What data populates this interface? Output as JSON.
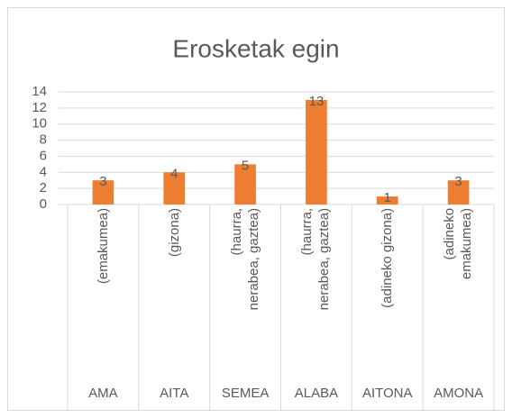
{
  "chart_data": {
    "type": "bar",
    "title": "Erosketak egin",
    "categories": [
      "(emakumea)",
      "(gizona)",
      "(haurra,\nnerabea, gaztea)",
      "(haurra,\nnerabea, gaztea)",
      "(adineko gizona)",
      "(adineko\nemakumea)"
    ],
    "groups": [
      "AMA",
      "AITA",
      "SEMEA",
      "ALABA",
      "AITONA",
      "AMONA"
    ],
    "values": [
      3,
      4,
      5,
      13,
      1,
      3
    ],
    "color": "#ed7d31",
    "ylim": [
      0,
      14
    ],
    "yticks": [
      0,
      2,
      4,
      6,
      8,
      10,
      12,
      14
    ],
    "grid": true
  }
}
